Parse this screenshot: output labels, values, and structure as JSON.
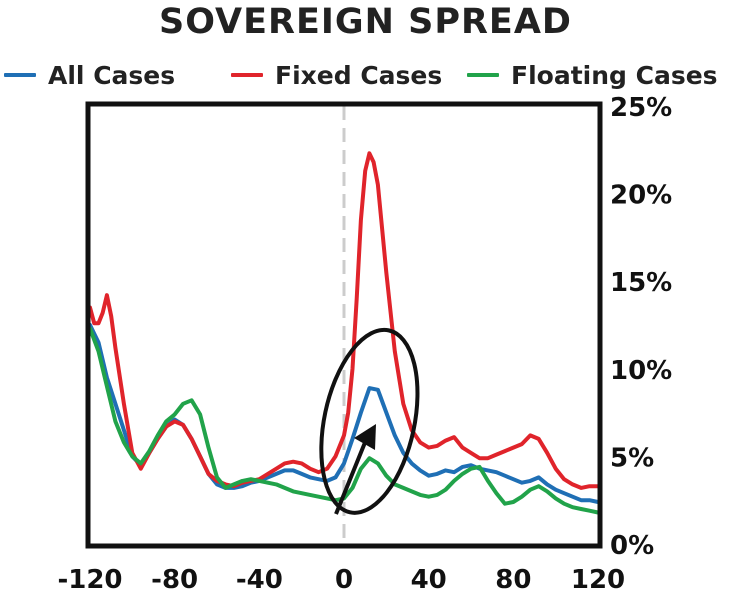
{
  "chart_data": {
    "type": "line",
    "title": "SOVEREIGN SPREAD",
    "xlabel": "",
    "ylabel": "",
    "xlim": [
      -120,
      120
    ],
    "ylim": [
      0,
      25
    ],
    "x_ticks": [
      -120,
      -80,
      -40,
      0,
      40,
      80,
      120
    ],
    "x_tick_labels": [
      "-120",
      "-80",
      "-40",
      "0",
      "40",
      "80",
      "120"
    ],
    "y_ticks": [
      0,
      5,
      10,
      15,
      20,
      25
    ],
    "y_tick_labels": [
      "0%",
      "5%",
      "10%",
      "15%",
      "20%",
      "25%"
    ],
    "y_axis_side": "right",
    "grid": false,
    "legend_placement": "top",
    "reference_line": {
      "x": 0,
      "style": "dashed",
      "color": "#cccccc"
    },
    "annotation": {
      "type": "ellipse with arrow",
      "center": [
        12,
        7
      ],
      "color": "#111111"
    },
    "series": [
      {
        "name": "All Cases",
        "color": "#1f6fb5",
        "x": [
          -120,
          -116,
          -112,
          -108,
          -104,
          -100,
          -96,
          -92,
          -88,
          -84,
          -80,
          -76,
          -72,
          -68,
          -64,
          -60,
          -56,
          -52,
          -48,
          -44,
          -40,
          -36,
          -32,
          -28,
          -24,
          -20,
          -16,
          -12,
          -8,
          -4,
          0,
          4,
          8,
          12,
          16,
          20,
          24,
          28,
          32,
          36,
          40,
          44,
          48,
          52,
          56,
          60,
          64,
          68,
          72,
          76,
          80,
          84,
          88,
          92,
          96,
          100,
          104,
          108,
          112,
          116,
          120
        ],
        "y": [
          12.5,
          11.5,
          9.5,
          8,
          6.5,
          5,
          4.5,
          5.2,
          6,
          6.7,
          7.1,
          6.8,
          6,
          5,
          4,
          3.4,
          3.2,
          3.2,
          3.3,
          3.5,
          3.6,
          3.8,
          4,
          4.2,
          4.2,
          4,
          3.8,
          3.7,
          3.6,
          3.8,
          4.6,
          6,
          7.5,
          8.9,
          8.8,
          7.5,
          6.2,
          5.2,
          4.6,
          4.2,
          3.9,
          4,
          4.2,
          4.1,
          4.4,
          4.5,
          4.3,
          4.2,
          4.1,
          3.9,
          3.7,
          3.5,
          3.6,
          3.8,
          3.4,
          3.1,
          2.9,
          2.7,
          2.5,
          2.5,
          2.4
        ]
      },
      {
        "name": "Fixed Cases",
        "color": "#e0242b",
        "x": [
          -120,
          -118,
          -116,
          -114,
          -112,
          -110,
          -108,
          -104,
          -100,
          -96,
          -92,
          -88,
          -84,
          -80,
          -76,
          -72,
          -68,
          -64,
          -60,
          -56,
          -52,
          -48,
          -44,
          -40,
          -36,
          -32,
          -28,
          -24,
          -20,
          -16,
          -12,
          -8,
          -4,
          0,
          2,
          4,
          6,
          8,
          10,
          12,
          14,
          16,
          18,
          20,
          24,
          28,
          32,
          36,
          40,
          44,
          48,
          52,
          56,
          60,
          64,
          68,
          72,
          76,
          80,
          84,
          88,
          92,
          96,
          100,
          104,
          108,
          112,
          116,
          120
        ],
        "y": [
          13.5,
          12.6,
          12.6,
          13.2,
          14.2,
          13,
          11.2,
          8,
          5.2,
          4.3,
          5.2,
          6,
          6.7,
          7,
          6.8,
          6,
          5,
          4,
          3.6,
          3.4,
          3.3,
          3.5,
          3.6,
          3.7,
          4,
          4.3,
          4.6,
          4.7,
          4.6,
          4.3,
          4.1,
          4.3,
          5,
          6.2,
          7.5,
          10,
          14,
          18.5,
          21.3,
          22.3,
          21.8,
          20.5,
          18,
          15.5,
          11,
          8,
          6.5,
          5.8,
          5.5,
          5.6,
          5.9,
          6.1,
          5.5,
          5.2,
          4.9,
          4.9,
          5.1,
          5.3,
          5.5,
          5.7,
          6.2,
          6,
          5.2,
          4.3,
          3.7,
          3.4,
          3.2,
          3.3,
          3.3
        ]
      },
      {
        "name": "Floating Cases",
        "color": "#21a34a",
        "x": [
          -120,
          -116,
          -112,
          -108,
          -104,
          -100,
          -96,
          -92,
          -88,
          -84,
          -80,
          -76,
          -72,
          -68,
          -64,
          -60,
          -56,
          -52,
          -48,
          -44,
          -40,
          -36,
          -32,
          -28,
          -24,
          -20,
          -16,
          -12,
          -8,
          -4,
          0,
          4,
          8,
          12,
          16,
          20,
          24,
          28,
          32,
          36,
          40,
          44,
          48,
          52,
          56,
          60,
          64,
          68,
          72,
          76,
          80,
          84,
          88,
          92,
          96,
          100,
          104,
          108,
          112,
          116,
          120
        ],
        "y": [
          12.3,
          11,
          9,
          7,
          5.8,
          5,
          4.6,
          5.3,
          6.2,
          7,
          7.4,
          8,
          8.2,
          7.4,
          5.5,
          3.8,
          3.2,
          3.4,
          3.6,
          3.7,
          3.6,
          3.5,
          3.4,
          3.2,
          3,
          2.9,
          2.8,
          2.7,
          2.6,
          2.5,
          2.6,
          3.2,
          4.3,
          4.9,
          4.6,
          3.9,
          3.4,
          3.2,
          3,
          2.8,
          2.7,
          2.8,
          3.1,
          3.6,
          4,
          4.3,
          4.4,
          3.6,
          2.9,
          2.3,
          2.4,
          2.7,
          3.1,
          3.3,
          3,
          2.6,
          2.3,
          2.1,
          2,
          1.9,
          1.8
        ]
      }
    ]
  }
}
